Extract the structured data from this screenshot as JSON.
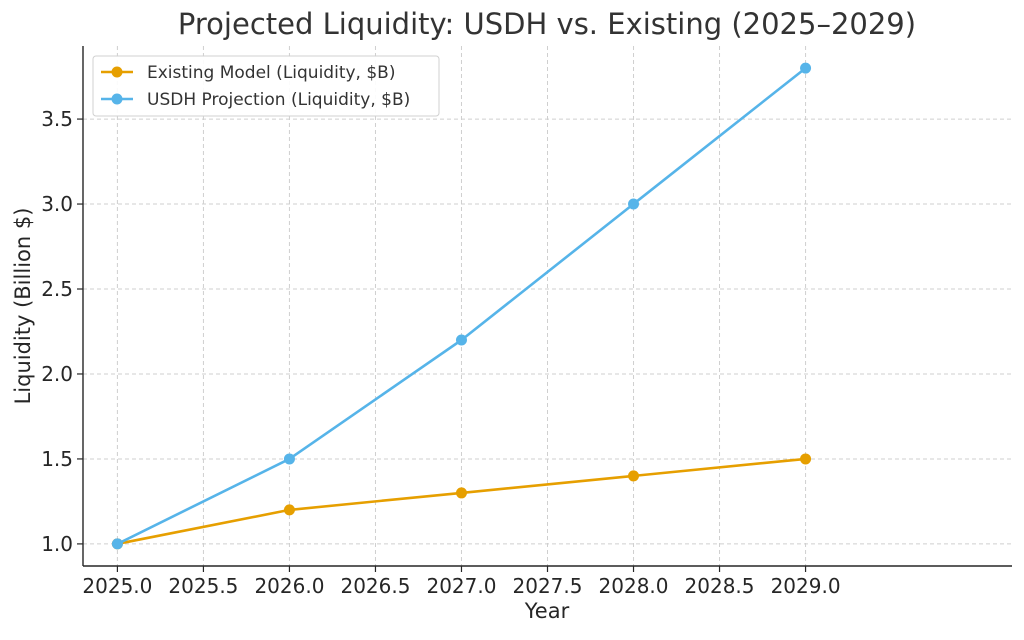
{
  "chart_data": {
    "type": "line",
    "title": "Projected Liquidity: USDH vs. Existing (2025–2029)",
    "xlabel": "Year",
    "ylabel": "Liquidity (Billion $)",
    "x": [
      2025,
      2026,
      2027,
      2028,
      2029
    ],
    "xlim": [
      2024.8,
      2030.2
    ],
    "ylim": [
      0.87,
      3.93
    ],
    "xticks": [
      "2025.0",
      "2025.5",
      "2026.0",
      "2026.5",
      "2027.0",
      "2027.5",
      "2028.0",
      "2028.5",
      "2029.0"
    ],
    "xtick_values": [
      2025.0,
      2025.5,
      2026.0,
      2026.5,
      2027.0,
      2027.5,
      2028.0,
      2028.5,
      2029.0
    ],
    "yticks": [
      "1.0",
      "1.5",
      "2.0",
      "2.5",
      "3.0",
      "3.5"
    ],
    "ytick_values": [
      1.0,
      1.5,
      2.0,
      2.5,
      3.0,
      3.5
    ],
    "grid": true,
    "legend_position": "top-left",
    "series": [
      {
        "name": "Existing Model (Liquidity, $B)",
        "color": "#E69F00",
        "marker": "circle",
        "values": [
          1.0,
          1.2,
          1.3,
          1.4,
          1.5
        ]
      },
      {
        "name": "USDH Projection (Liquidity, $B)",
        "color": "#56B4E9",
        "marker": "circle",
        "values": [
          1.0,
          1.5,
          2.2,
          3.0,
          3.8
        ]
      }
    ]
  }
}
